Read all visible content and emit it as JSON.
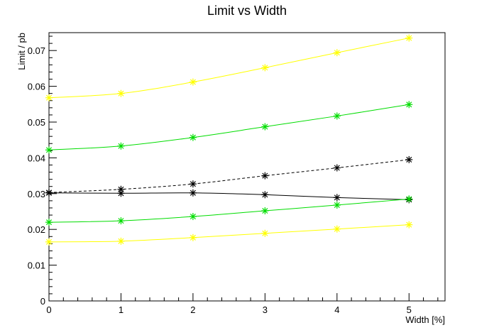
{
  "chart_data": {
    "type": "line",
    "title": "Limit vs Width",
    "xlabel": "Width [%]",
    "ylabel": "Limit / pb",
    "xlim": [
      0,
      5.5
    ],
    "ylim": [
      0,
      0.075
    ],
    "xticks": [
      0,
      1,
      2,
      3,
      4,
      5
    ],
    "xtick_labels": [
      "0",
      "1",
      "2",
      "3",
      "4",
      "5"
    ],
    "yticks": [
      0,
      0.01,
      0.02,
      0.03,
      0.04,
      0.05,
      0.06,
      0.07
    ],
    "ytick_labels": [
      "0",
      "0.01",
      "0.02",
      "0.03",
      "0.04",
      "0.05",
      "0.06",
      "0.07"
    ],
    "grid": false,
    "x": [
      0,
      1,
      2,
      3,
      4,
      5
    ],
    "series": [
      {
        "values": [
          0.0568,
          0.058,
          0.0612,
          0.0652,
          0.0694,
          0.0735
        ],
        "color": "#ffff00",
        "style": "solid"
      },
      {
        "values": [
          0.0422,
          0.0433,
          0.0457,
          0.0487,
          0.0517,
          0.0549
        ],
        "color": "#00dd00",
        "style": "solid"
      },
      {
        "values": [
          0.0303,
          0.0312,
          0.0327,
          0.035,
          0.0372,
          0.0395
        ],
        "color": "#000000",
        "style": "dashed"
      },
      {
        "values": [
          0.0302,
          0.0301,
          0.0302,
          0.0297,
          0.0289,
          0.0283
        ],
        "color": "#000000",
        "style": "solid"
      },
      {
        "values": [
          0.022,
          0.0224,
          0.0236,
          0.0252,
          0.0268,
          0.0285
        ],
        "color": "#00dd00",
        "style": "solid"
      },
      {
        "values": [
          0.0165,
          0.0167,
          0.0177,
          0.0189,
          0.0201,
          0.0213
        ],
        "color": "#ffff00",
        "style": "solid"
      }
    ]
  }
}
